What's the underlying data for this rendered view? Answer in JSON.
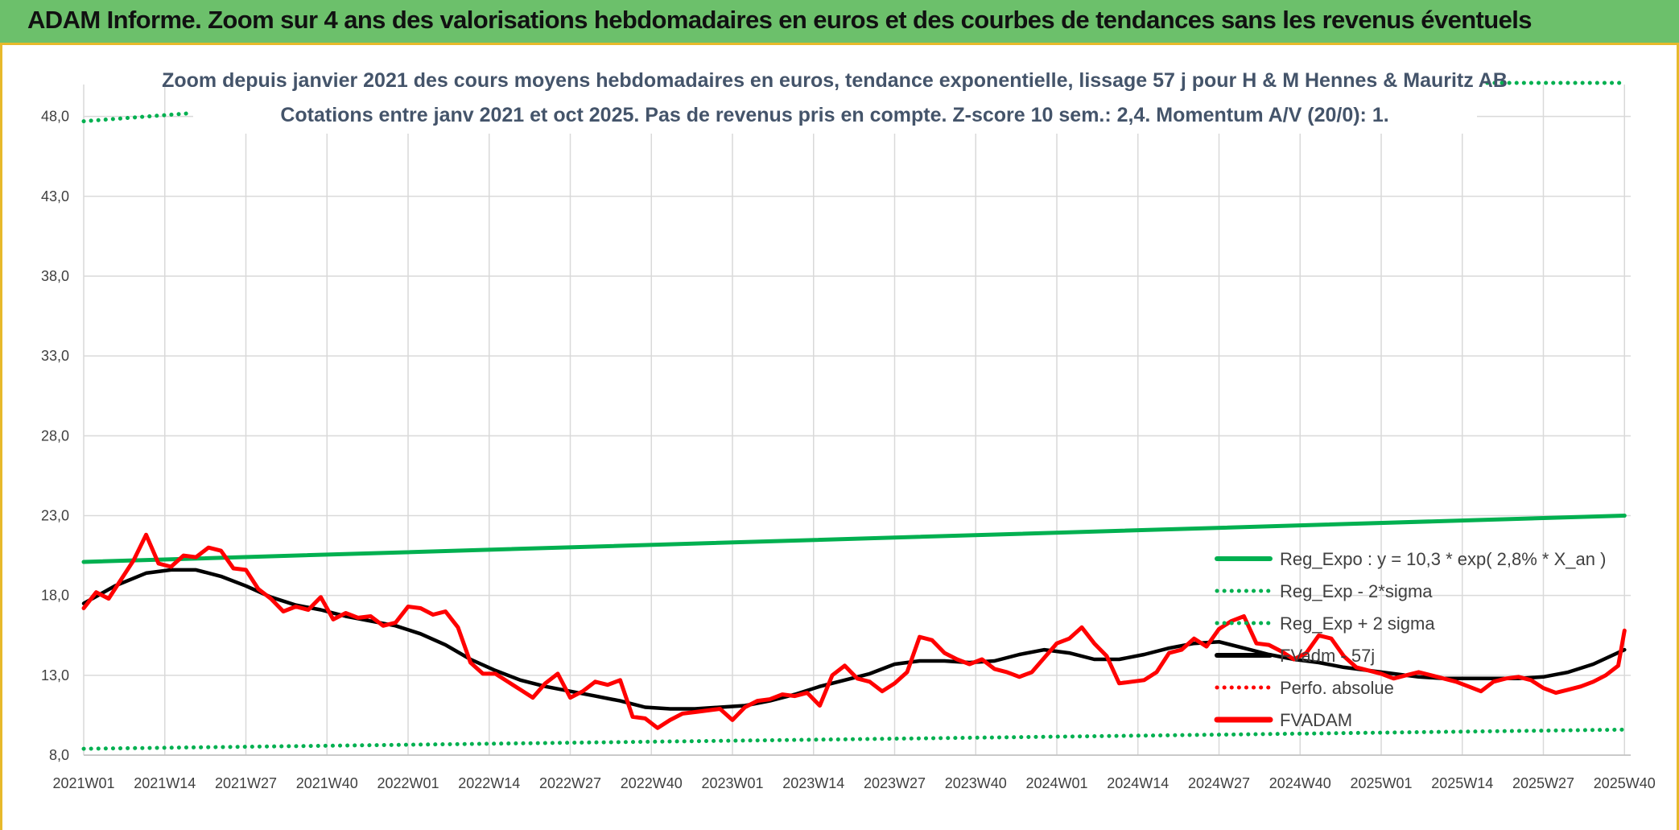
{
  "banner": {
    "title": "ADAM Informe. Zoom sur 4 ans des valorisations hebdomadaires en euros et des courbes de tendances sans les revenus éventuels"
  },
  "chart_data": {
    "type": "line",
    "title": "Zoom depuis janvier 2021 des cours moyens hebdomadaires en euros, tendance exponentielle, lissage 57 j pour H & M Hennes & Mauritz AB",
    "subtitle": "Cotations entre janv 2021 et oct 2025. Pas de revenus pris en compte. Z-score 10 sem.: 2,4. Momentum A/V (20/0): 1.",
    "xlabel": "",
    "ylabel": "",
    "ylim": [
      8,
      50
    ],
    "yticks": [
      "8,0",
      "13,0",
      "18,0",
      "23,0",
      "28,0",
      "33,0",
      "38,0",
      "43,0",
      "48,0"
    ],
    "yticks_values": [
      8,
      13,
      18,
      23,
      28,
      33,
      38,
      43,
      48
    ],
    "x_range": [
      0,
      248
    ],
    "categories": [
      "2021W01",
      "2021W14",
      "2021W27",
      "2021W40",
      "2022W01",
      "2022W14",
      "2022W27",
      "2022W40",
      "2023W01",
      "2023W14",
      "2023W27",
      "2023W40",
      "2024W01",
      "2024W14",
      "2024W27",
      "2024W40",
      "2025W01",
      "2025W14",
      "2025W27",
      "2025W40"
    ],
    "category_index": [
      0,
      13,
      26,
      39,
      52,
      65,
      78,
      91,
      104,
      117,
      130,
      143,
      156,
      169,
      182,
      195,
      208,
      221,
      234,
      247
    ],
    "grid": true,
    "legend_position": "right",
    "series": [
      {
        "name": "Reg_Expo : y = 10,3 * exp( 2,8% *  X_an )",
        "style": "solid",
        "color": "#00b050",
        "x": [
          0,
          247
        ],
        "y": [
          20.1,
          23.0
        ]
      },
      {
        "name": "Reg_Exp - 2*sigma",
        "style": "dotted",
        "color": "#00b050",
        "x": [
          0,
          247
        ],
        "y": [
          8.4,
          9.6
        ]
      },
      {
        "name": "Reg_Exp + 2 sigma",
        "style": "dotted",
        "color": "#00b050",
        "x": [
          0,
          17,
          225,
          247
        ],
        "y": [
          47.7,
          48.2,
          50.1,
          50.1
        ],
        "gap_between_index": [
          1,
          2
        ]
      },
      {
        "name": "FVadm - 57j",
        "style": "solid",
        "color": "#000000",
        "x": [
          0,
          5,
          10,
          14,
          18,
          22,
          26,
          30,
          34,
          38,
          42,
          46,
          50,
          54,
          58,
          62,
          66,
          70,
          74,
          78,
          82,
          86,
          90,
          94,
          98,
          102,
          106,
          110,
          114,
          118,
          122,
          126,
          130,
          134,
          138,
          142,
          146,
          150,
          154,
          158,
          162,
          166,
          170,
          174,
          178,
          182,
          186,
          190,
          194,
          198,
          202,
          206,
          210,
          214,
          218,
          222,
          226,
          230,
          234,
          238,
          242,
          247
        ],
        "y": [
          17.5,
          18.6,
          19.4,
          19.6,
          19.6,
          19.2,
          18.6,
          17.9,
          17.4,
          17.1,
          16.7,
          16.4,
          16.1,
          15.6,
          14.9,
          14.0,
          13.3,
          12.7,
          12.3,
          12.0,
          11.7,
          11.4,
          11.0,
          10.9,
          10.9,
          11.0,
          11.1,
          11.4,
          11.8,
          12.3,
          12.7,
          13.1,
          13.7,
          13.9,
          13.9,
          13.8,
          13.9,
          14.3,
          14.6,
          14.4,
          14.0,
          14.0,
          14.3,
          14.7,
          15.0,
          15.1,
          14.7,
          14.3,
          14.0,
          13.8,
          13.5,
          13.3,
          13.1,
          12.9,
          12.8,
          12.8,
          12.8,
          12.8,
          12.9,
          13.2,
          13.7,
          14.6
        ]
      },
      {
        "name": "Perfo. absolue",
        "style": "dotted",
        "color": "#ff0000",
        "x": [],
        "y": []
      },
      {
        "name": "FVADAM",
        "style": "solid",
        "color": "#ff0000",
        "x": [
          0,
          2,
          4,
          6,
          8,
          10,
          12,
          14,
          16,
          18,
          20,
          22,
          24,
          26,
          28,
          30,
          32,
          34,
          36,
          38,
          40,
          42,
          44,
          46,
          48,
          50,
          52,
          54,
          56,
          58,
          60,
          62,
          64,
          66,
          68,
          70,
          72,
          74,
          76,
          78,
          80,
          82,
          84,
          86,
          88,
          90,
          92,
          94,
          96,
          98,
          100,
          102,
          104,
          106,
          108,
          110,
          112,
          114,
          116,
          118,
          120,
          122,
          124,
          126,
          128,
          130,
          132,
          134,
          136,
          138,
          140,
          142,
          144,
          146,
          148,
          150,
          152,
          154,
          156,
          158,
          160,
          162,
          164,
          166,
          168,
          170,
          172,
          174,
          176,
          178,
          180,
          182,
          184,
          186,
          188,
          190,
          192,
          194,
          196,
          198,
          200,
          202,
          204,
          206,
          208,
          210,
          212,
          214,
          216,
          218,
          220,
          222,
          224,
          226,
          228,
          230,
          232,
          234,
          236,
          238,
          240,
          242,
          244,
          246,
          247
        ],
        "y": [
          17.2,
          18.2,
          17.8,
          19.0,
          20.2,
          21.8,
          20.0,
          19.8,
          20.5,
          20.4,
          21.0,
          20.8,
          19.7,
          19.6,
          18.4,
          17.8,
          17.0,
          17.3,
          17.1,
          17.9,
          16.5,
          16.9,
          16.6,
          16.7,
          16.1,
          16.3,
          17.3,
          17.2,
          16.8,
          17.0,
          16.0,
          13.8,
          13.1,
          13.1,
          12.6,
          12.1,
          11.6,
          12.5,
          13.1,
          11.6,
          12.0,
          12.6,
          12.4,
          12.7,
          10.4,
          10.3,
          9.7,
          10.2,
          10.6,
          10.7,
          10.8,
          10.9,
          10.2,
          11.0,
          11.4,
          11.5,
          11.8,
          11.7,
          11.9,
          11.1,
          13.0,
          13.6,
          12.8,
          12.6,
          12.0,
          12.5,
          13.2,
          15.4,
          15.2,
          14.4,
          14.0,
          13.7,
          14.0,
          13.4,
          13.2,
          12.9,
          13.2,
          14.1,
          15.0,
          15.3,
          16.0,
          15.0,
          14.2,
          12.5,
          12.6,
          12.7,
          13.2,
          14.4,
          14.6,
          15.3,
          14.8,
          15.9,
          16.4,
          16.7,
          15.0,
          14.9,
          14.5,
          14.0,
          14.4,
          15.5,
          15.3,
          14.2,
          13.5,
          13.3,
          13.1,
          12.8,
          13.0,
          13.2,
          13.0,
          12.8,
          12.6,
          12.3,
          12.0,
          12.6,
          12.8,
          12.9,
          12.7,
          12.2,
          11.9,
          12.1,
          12.3,
          12.6,
          13.0,
          13.6,
          15.8
        ]
      }
    ]
  }
}
